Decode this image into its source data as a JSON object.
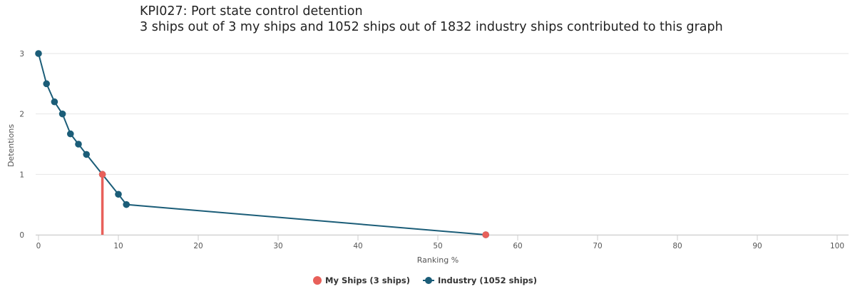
{
  "chart_data": {
    "type": "line",
    "title_line1": "KPI027: Port state control detention",
    "title_line2": "3 ships out of 3 my ships and 1052 ships out of 1832 industry ships contributed to this graph",
    "xlabel": "Ranking %",
    "ylabel": "Detentions",
    "xlim": [
      0,
      100
    ],
    "ylim": [
      0,
      3
    ],
    "x_ticks": [
      0,
      10,
      20,
      30,
      40,
      50,
      60,
      70,
      80,
      90,
      100
    ],
    "y_ticks": [
      0,
      1,
      2,
      3
    ],
    "grid": "horizontal",
    "legend_position": "bottom-center",
    "series": [
      {
        "name": "Industry (1052 ships)",
        "color": "#1b5d78",
        "type": "line",
        "x": [
          0,
          1,
          2,
          3,
          4,
          5,
          6,
          8,
          10,
          11,
          56
        ],
        "y": [
          3,
          2.5,
          2.2,
          2,
          1.67,
          1.5,
          1.33,
          1,
          0.67,
          0.5,
          0
        ]
      },
      {
        "name": "My Ships (3 ships)",
        "color": "#e8605a",
        "type": "scatter",
        "x": [
          8,
          8,
          56
        ],
        "y": [
          1,
          0,
          0
        ]
      }
    ]
  },
  "legend": {
    "my_ships_label": "My Ships (3 ships)",
    "industry_label": "Industry (1052 ships)"
  }
}
